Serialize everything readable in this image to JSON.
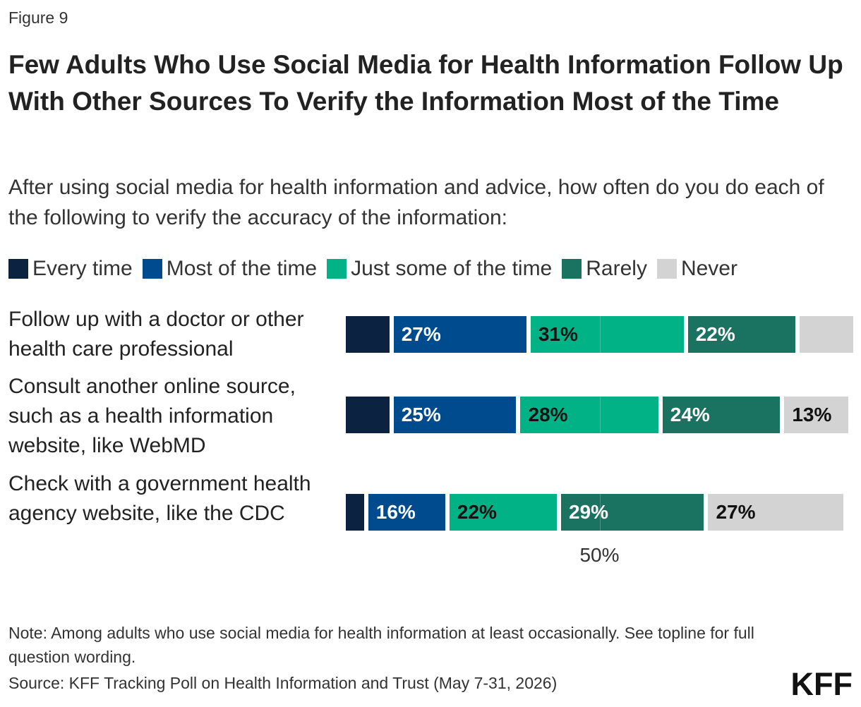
{
  "figure_label": "Figure 9",
  "title": "Few Adults Who Use Social Media for Health Information Follow Up With Other Sources To Verify the Information Most of the Time",
  "subtitle": "After using social media for health information and advice, how often do you do each of the following to verify the accuracy of the information:",
  "note": "Note: Among adults who use social media for health information at least occasionally. See topline for full question wording.",
  "source": "Source: KFF Tracking Poll on Health Information and Trust (May 7-31, 2026)",
  "logo": "KFF",
  "chart_data": {
    "type": "bar",
    "orientation": "horizontal",
    "stacked": true,
    "categories": [
      "Follow up with a doctor or other health care professional",
      "Consult another online source, such as a health information website, like WebMD",
      "Check with a government health agency website, like the CDC"
    ],
    "series": [
      {
        "name": "Every time",
        "color": "#0b2240",
        "values": [
          9,
          9,
          4
        ]
      },
      {
        "name": "Most of the time",
        "color": "#004b8d",
        "values": [
          27,
          25,
          16
        ]
      },
      {
        "name": "Just some of the time",
        "color": "#00b286",
        "values": [
          31,
          28,
          22
        ]
      },
      {
        "name": "Rarely",
        "color": "#1a7361",
        "values": [
          22,
          24,
          29
        ]
      },
      {
        "name": "Never",
        "color": "#d3d3d3",
        "values": [
          11,
          13,
          27
        ]
      }
    ],
    "data_labels": [
      [
        "",
        "27%",
        "31%",
        "22%",
        ""
      ],
      [
        "",
        "25%",
        "28%",
        "24%",
        "13%"
      ],
      [
        "",
        "16%",
        "22%",
        "29%",
        "27%"
      ]
    ],
    "label_colors": [
      "#ffffff",
      "#ffffff",
      "#111111",
      "#ffffff",
      "#111111"
    ],
    "xlim": [
      0,
      100
    ],
    "xtick_labels": [
      {
        "value": 50,
        "label": "50%"
      }
    ],
    "legend_position": "top",
    "grid": true
  }
}
